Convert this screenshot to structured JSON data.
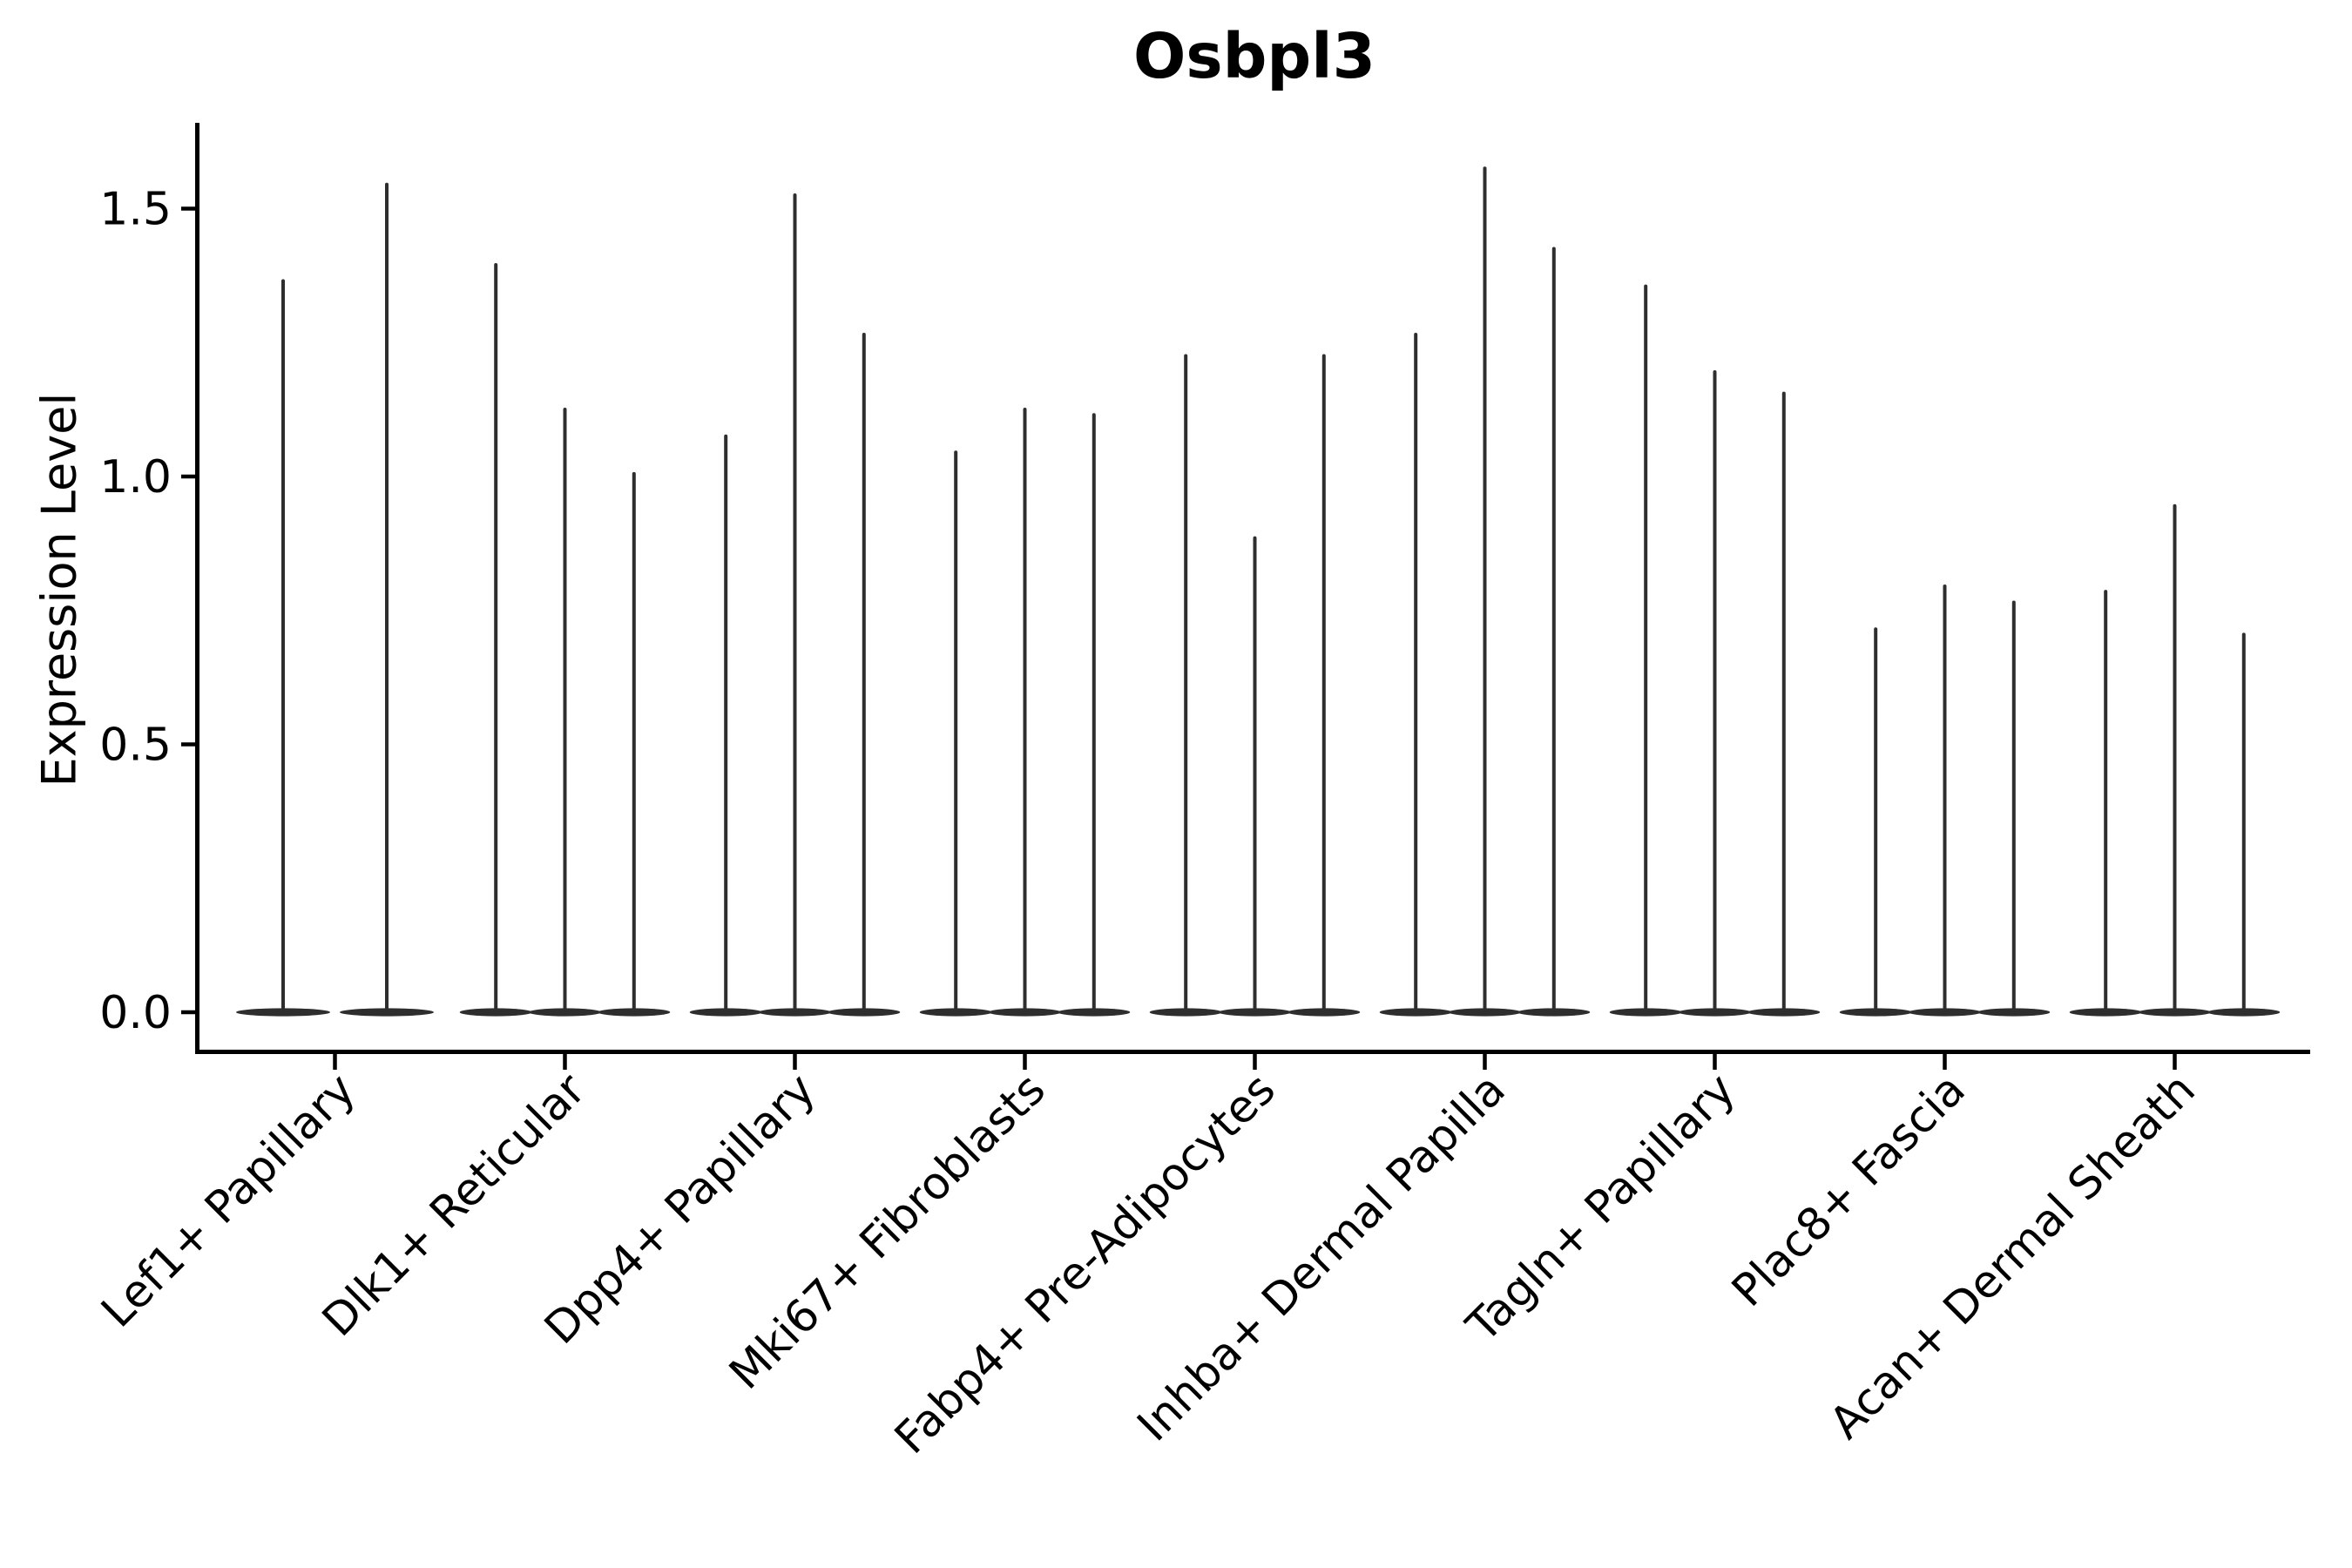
{
  "chart_data": {
    "type": "violin",
    "title": "Osbpl3",
    "ylabel": "Expression Level",
    "xlabel": "",
    "categories": [
      "Lef1+ Papillary",
      "Dlk1+ Reticular",
      "Dpp4+ Papillary",
      "Mki67+ Fibroblasts",
      "Fabp4+ Pre-Adipocytes",
      "Inhba+ Dermal Papilla",
      "Tagln+ Papillary",
      "Plac8+ Fascia",
      "Acan+ Dermal Sheath"
    ],
    "violins": [
      [
        1.37,
        1.55
      ],
      [
        1.4,
        1.13,
        1.01
      ],
      [
        1.08,
        1.53,
        1.27
      ],
      [
        1.05,
        1.13,
        1.12
      ],
      [
        1.23,
        0.89,
        1.23
      ],
      [
        1.27,
        1.58,
        1.43
      ],
      [
        1.36,
        1.2,
        1.16
      ],
      [
        0.72,
        0.8,
        0.77
      ],
      [
        0.79,
        0.95,
        0.71
      ]
    ],
    "violin_shape_note": "each violin is a wide flat lens at expression 0 with a thin needle rising to its max value",
    "baseline_value": 0.0,
    "ytick_labels": [
      "0.0",
      "0.5",
      "1.0",
      "1.5"
    ],
    "ytick_values": [
      0.0,
      0.5,
      1.0,
      1.5
    ],
    "ylim": [
      -0.07,
      1.66
    ],
    "grid": false,
    "legend": "none",
    "x_label_rotation_deg": 45,
    "colors": {
      "violin": "#2e2e2e",
      "axis": "#000000",
      "text": "#000000",
      "background": "#ffffff"
    }
  }
}
